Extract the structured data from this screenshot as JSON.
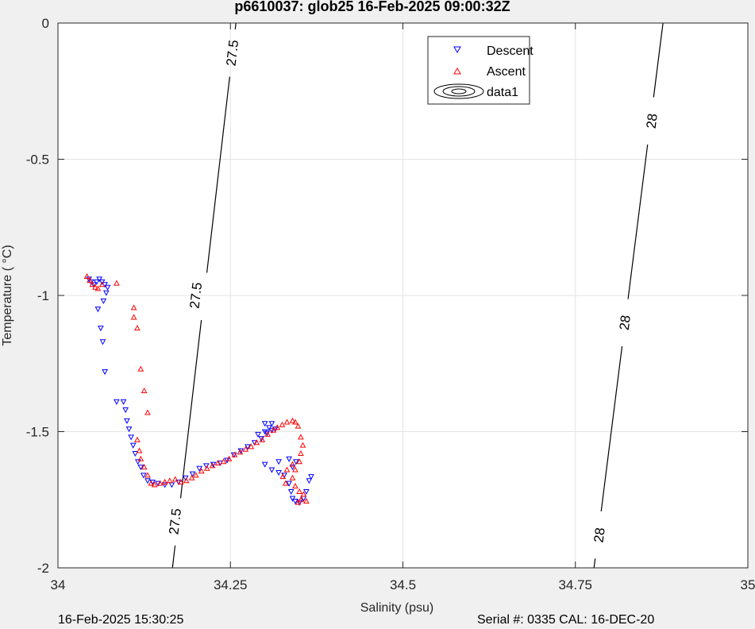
{
  "chart_data": {
    "type": "scatter",
    "title": "p6610037: glob25 16-Feb-2025 09:00:32Z",
    "xlabel": "Salinity (psu)",
    "ylabel": "Temperature (   °C)",
    "xlim": [
      34,
      35
    ],
    "ylim": [
      -2,
      0
    ],
    "xticks": [
      34,
      34.25,
      34.5,
      34.75,
      35
    ],
    "xtick_labels": [
      "34",
      "34.25",
      "34.5",
      "34.75",
      "35"
    ],
    "yticks": [
      0,
      -0.5,
      -1,
      -1.5,
      -2
    ],
    "ytick_labels": [
      "0",
      "-0.5",
      "-1",
      "-1.5",
      "-2"
    ],
    "grid": true,
    "legend_position": "top-right",
    "legend": [
      "Descent",
      "Ascent",
      "data1"
    ],
    "contours": [
      {
        "level": 27.5,
        "label": "27.5",
        "points": [
          [
            34.258,
            0
          ],
          [
            34.166,
            -2
          ]
        ],
        "label_positions": [
          [
            34.253,
            -0.11
          ],
          [
            34.2,
            -1.0
          ],
          [
            34.17,
            -1.83
          ]
        ]
      },
      {
        "level": 28,
        "label": "28",
        "points": [
          [
            34.877,
            0
          ],
          [
            34.777,
            -2
          ]
        ],
        "label_positions": [
          [
            34.861,
            -0.36
          ],
          [
            34.822,
            -1.1
          ],
          [
            34.785,
            -1.88
          ]
        ]
      }
    ],
    "series": [
      {
        "name": "Descent",
        "color": "#0000ff",
        "marker": "triangle-down",
        "points": [
          [
            34.045,
            -0.94
          ],
          [
            34.048,
            -0.95
          ],
          [
            34.052,
            -0.96
          ],
          [
            34.056,
            -0.95
          ],
          [
            34.06,
            -0.94
          ],
          [
            34.064,
            -0.95
          ],
          [
            34.068,
            -0.96
          ],
          [
            34.072,
            -0.97
          ],
          [
            34.07,
            -0.99
          ],
          [
            34.066,
            -1.02
          ],
          [
            34.058,
            -1.05
          ],
          [
            34.062,
            -1.12
          ],
          [
            34.065,
            -1.17
          ],
          [
            34.068,
            -1.28
          ],
          [
            34.085,
            -1.39
          ],
          [
            34.095,
            -1.39
          ],
          [
            34.098,
            -1.42
          ],
          [
            34.1,
            -1.46
          ],
          [
            34.103,
            -1.49
          ],
          [
            34.106,
            -1.52
          ],
          [
            34.109,
            -1.55
          ],
          [
            34.112,
            -1.58
          ],
          [
            34.116,
            -1.61
          ],
          [
            34.12,
            -1.63
          ],
          [
            34.124,
            -1.66
          ],
          [
            34.13,
            -1.68
          ],
          [
            34.137,
            -1.685
          ],
          [
            34.145,
            -1.69
          ],
          [
            34.155,
            -1.695
          ],
          [
            34.165,
            -1.695
          ],
          [
            34.175,
            -1.685
          ],
          [
            34.185,
            -1.67
          ],
          [
            34.195,
            -1.655
          ],
          [
            34.205,
            -1.635
          ],
          [
            34.215,
            -1.625
          ],
          [
            34.225,
            -1.62
          ],
          [
            34.235,
            -1.615
          ],
          [
            34.245,
            -1.605
          ],
          [
            34.255,
            -1.585
          ],
          [
            34.265,
            -1.57
          ],
          [
            34.275,
            -1.555
          ],
          [
            34.285,
            -1.54
          ],
          [
            34.295,
            -1.525
          ],
          [
            34.303,
            -1.505
          ],
          [
            34.31,
            -1.495
          ],
          [
            34.315,
            -1.49
          ],
          [
            34.31,
            -1.47
          ],
          [
            34.3,
            -1.47
          ],
          [
            34.306,
            -1.485
          ],
          [
            34.3,
            -1.5
          ],
          [
            34.29,
            -1.51
          ],
          [
            34.3,
            -1.62
          ],
          [
            34.31,
            -1.64
          ],
          [
            34.32,
            -1.65
          ],
          [
            34.328,
            -1.66
          ],
          [
            34.335,
            -1.69
          ],
          [
            34.338,
            -1.72
          ],
          [
            34.34,
            -1.745
          ],
          [
            34.344,
            -1.755
          ],
          [
            34.35,
            -1.76
          ],
          [
            34.356,
            -1.745
          ],
          [
            34.36,
            -1.72
          ],
          [
            34.364,
            -1.68
          ],
          [
            34.367,
            -1.665
          ],
          [
            34.345,
            -1.61
          ],
          [
            34.34,
            -1.63
          ],
          [
            34.335,
            -1.6
          ],
          [
            34.32,
            -1.61
          ]
        ]
      },
      {
        "name": "Ascent",
        "color": "#ff0000",
        "marker": "triangle-up",
        "points": [
          [
            34.042,
            -0.93
          ],
          [
            34.046,
            -0.945
          ],
          [
            34.05,
            -0.96
          ],
          [
            34.054,
            -0.97
          ],
          [
            34.058,
            -0.975
          ],
          [
            34.064,
            -0.96
          ],
          [
            34.085,
            -0.955
          ],
          [
            34.11,
            -1.045
          ],
          [
            34.11,
            -1.08
          ],
          [
            34.115,
            -1.12
          ],
          [
            34.12,
            -1.27
          ],
          [
            34.125,
            -1.35
          ],
          [
            34.13,
            -1.43
          ],
          [
            34.115,
            -1.53
          ],
          [
            34.118,
            -1.57
          ],
          [
            34.12,
            -1.6
          ],
          [
            34.125,
            -1.63
          ],
          [
            34.13,
            -1.66
          ],
          [
            34.135,
            -1.69
          ],
          [
            34.14,
            -1.695
          ],
          [
            34.148,
            -1.69
          ],
          [
            34.155,
            -1.685
          ],
          [
            34.162,
            -1.68
          ],
          [
            34.17,
            -1.675
          ],
          [
            34.178,
            -1.685
          ],
          [
            34.186,
            -1.68
          ],
          [
            34.194,
            -1.67
          ],
          [
            34.2,
            -1.66
          ],
          [
            34.208,
            -1.645
          ],
          [
            34.216,
            -1.635
          ],
          [
            34.224,
            -1.625
          ],
          [
            34.232,
            -1.615
          ],
          [
            34.24,
            -1.61
          ],
          [
            34.248,
            -1.6
          ],
          [
            34.256,
            -1.585
          ],
          [
            34.264,
            -1.575
          ],
          [
            34.272,
            -1.565
          ],
          [
            34.28,
            -1.555
          ],
          [
            34.288,
            -1.54
          ],
          [
            34.296,
            -1.53
          ],
          [
            34.304,
            -1.51
          ],
          [
            34.312,
            -1.495
          ],
          [
            34.318,
            -1.485
          ],
          [
            34.325,
            -1.475
          ],
          [
            34.332,
            -1.465
          ],
          [
            34.34,
            -1.46
          ],
          [
            34.344,
            -1.465
          ],
          [
            34.348,
            -1.48
          ],
          [
            34.352,
            -1.52
          ],
          [
            34.355,
            -1.55
          ],
          [
            34.352,
            -1.58
          ],
          [
            34.35,
            -1.61
          ],
          [
            34.344,
            -1.64
          ],
          [
            34.34,
            -1.67
          ],
          [
            34.344,
            -1.7
          ],
          [
            34.35,
            -1.72
          ],
          [
            34.356,
            -1.73
          ],
          [
            34.352,
            -1.75
          ],
          [
            34.348,
            -1.76
          ],
          [
            34.36,
            -1.755
          ],
          [
            34.34,
            -1.62
          ],
          [
            34.332,
            -1.64
          ],
          [
            34.326,
            -1.665
          ],
          [
            34.33,
            -1.69
          ]
        ]
      }
    ]
  },
  "footer": {
    "left": "16-Feb-2025 15:30:25",
    "right": "Serial #: 0335  CAL: 16-DEC-20"
  }
}
